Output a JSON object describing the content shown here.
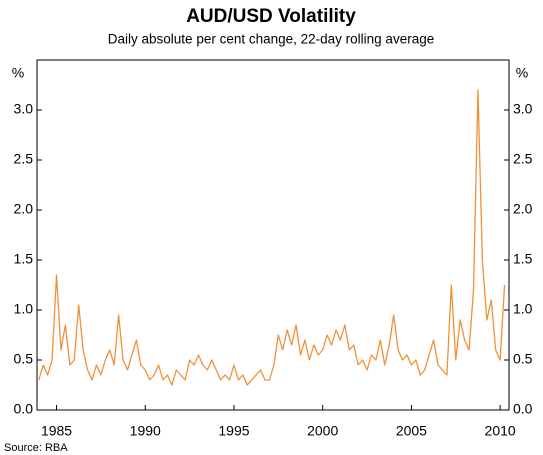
{
  "chart_data": {
    "type": "line",
    "title": "AUD/USD Volatility",
    "subtitle": "Daily absolute per cent change, 22-day rolling average",
    "y_label": "%",
    "y2_label": "%",
    "source": "Source: RBA",
    "x": [
      1984,
      1984.25,
      1984.5,
      1984.75,
      1985,
      1985.25,
      1985.5,
      1985.75,
      1986,
      1986.25,
      1986.5,
      1986.75,
      1987,
      1987.25,
      1987.5,
      1987.75,
      1988,
      1988.25,
      1988.5,
      1988.75,
      1989,
      1989.25,
      1989.5,
      1989.75,
      1990,
      1990.25,
      1990.5,
      1990.75,
      1991,
      1991.25,
      1991.5,
      1991.75,
      1992,
      1992.25,
      1992.5,
      1992.75,
      1993,
      1993.25,
      1993.5,
      1993.75,
      1994,
      1994.25,
      1994.5,
      1994.75,
      1995,
      1995.25,
      1995.5,
      1995.75,
      1996,
      1996.25,
      1996.5,
      1996.75,
      1997,
      1997.25,
      1997.5,
      1997.75,
      1998,
      1998.25,
      1998.5,
      1998.75,
      1999,
      1999.25,
      1999.5,
      1999.75,
      2000,
      2000.25,
      2000.5,
      2000.75,
      2001,
      2001.25,
      2001.5,
      2001.75,
      2002,
      2002.25,
      2002.5,
      2002.75,
      2003,
      2003.25,
      2003.5,
      2003.75,
      2004,
      2004.25,
      2004.5,
      2004.75,
      2005,
      2005.25,
      2005.5,
      2005.75,
      2006,
      2006.25,
      2006.5,
      2006.75,
      2007,
      2007.25,
      2007.5,
      2007.75,
      2008,
      2008.25,
      2008.5,
      2008.75,
      2009,
      2009.25,
      2009.5,
      2009.75,
      2010,
      2010.25
    ],
    "series": [
      {
        "name": "AUD/USD",
        "color": "#f0913a",
        "values": [
          0.3,
          0.45,
          0.35,
          0.5,
          1.35,
          0.6,
          0.85,
          0.45,
          0.5,
          1.05,
          0.6,
          0.4,
          0.3,
          0.45,
          0.35,
          0.5,
          0.6,
          0.45,
          0.95,
          0.5,
          0.4,
          0.55,
          0.7,
          0.45,
          0.4,
          0.3,
          0.35,
          0.45,
          0.3,
          0.35,
          0.25,
          0.4,
          0.35,
          0.3,
          0.5,
          0.45,
          0.55,
          0.45,
          0.4,
          0.5,
          0.4,
          0.3,
          0.35,
          0.3,
          0.45,
          0.3,
          0.35,
          0.25,
          0.3,
          0.35,
          0.4,
          0.3,
          0.3,
          0.45,
          0.75,
          0.6,
          0.8,
          0.65,
          0.85,
          0.55,
          0.7,
          0.5,
          0.65,
          0.55,
          0.6,
          0.75,
          0.65,
          0.8,
          0.7,
          0.85,
          0.6,
          0.65,
          0.45,
          0.5,
          0.4,
          0.55,
          0.5,
          0.7,
          0.45,
          0.65,
          0.95,
          0.6,
          0.5,
          0.55,
          0.45,
          0.5,
          0.35,
          0.4,
          0.55,
          0.7,
          0.45,
          0.4,
          0.35,
          1.25,
          0.5,
          0.9,
          0.7,
          0.6,
          1.2,
          3.2,
          1.5,
          0.9,
          1.1,
          0.6,
          0.5,
          1.25
        ]
      }
    ],
    "xlim": [
      1983.9,
      2010.5
    ],
    "xticks": [
      1985,
      1990,
      1995,
      2000,
      2005,
      2010
    ],
    "ylim": [
      0,
      3.5
    ],
    "yticks": [
      {
        "value": 0,
        "label": "0.0"
      },
      {
        "value": 0.5,
        "label": "0.5"
      },
      {
        "value": 1,
        "label": "1.0"
      },
      {
        "value": 1.5,
        "label": "1.5"
      },
      {
        "value": 2,
        "label": "2.0"
      },
      {
        "value": 2.5,
        "label": "2.5"
      },
      {
        "value": 3,
        "label": "3.0"
      }
    ],
    "y2lim": [
      0,
      3.5
    ],
    "y2ticks": [
      {
        "value": 0,
        "label": "0.0"
      },
      {
        "value": 0.5,
        "label": "0.5"
      },
      {
        "value": 1,
        "label": "1.0"
      },
      {
        "value": 1.5,
        "label": "1.5"
      },
      {
        "value": 2,
        "label": "2.0"
      },
      {
        "value": 2.5,
        "label": "2.5"
      },
      {
        "value": 3,
        "label": "3.0"
      }
    ]
  }
}
